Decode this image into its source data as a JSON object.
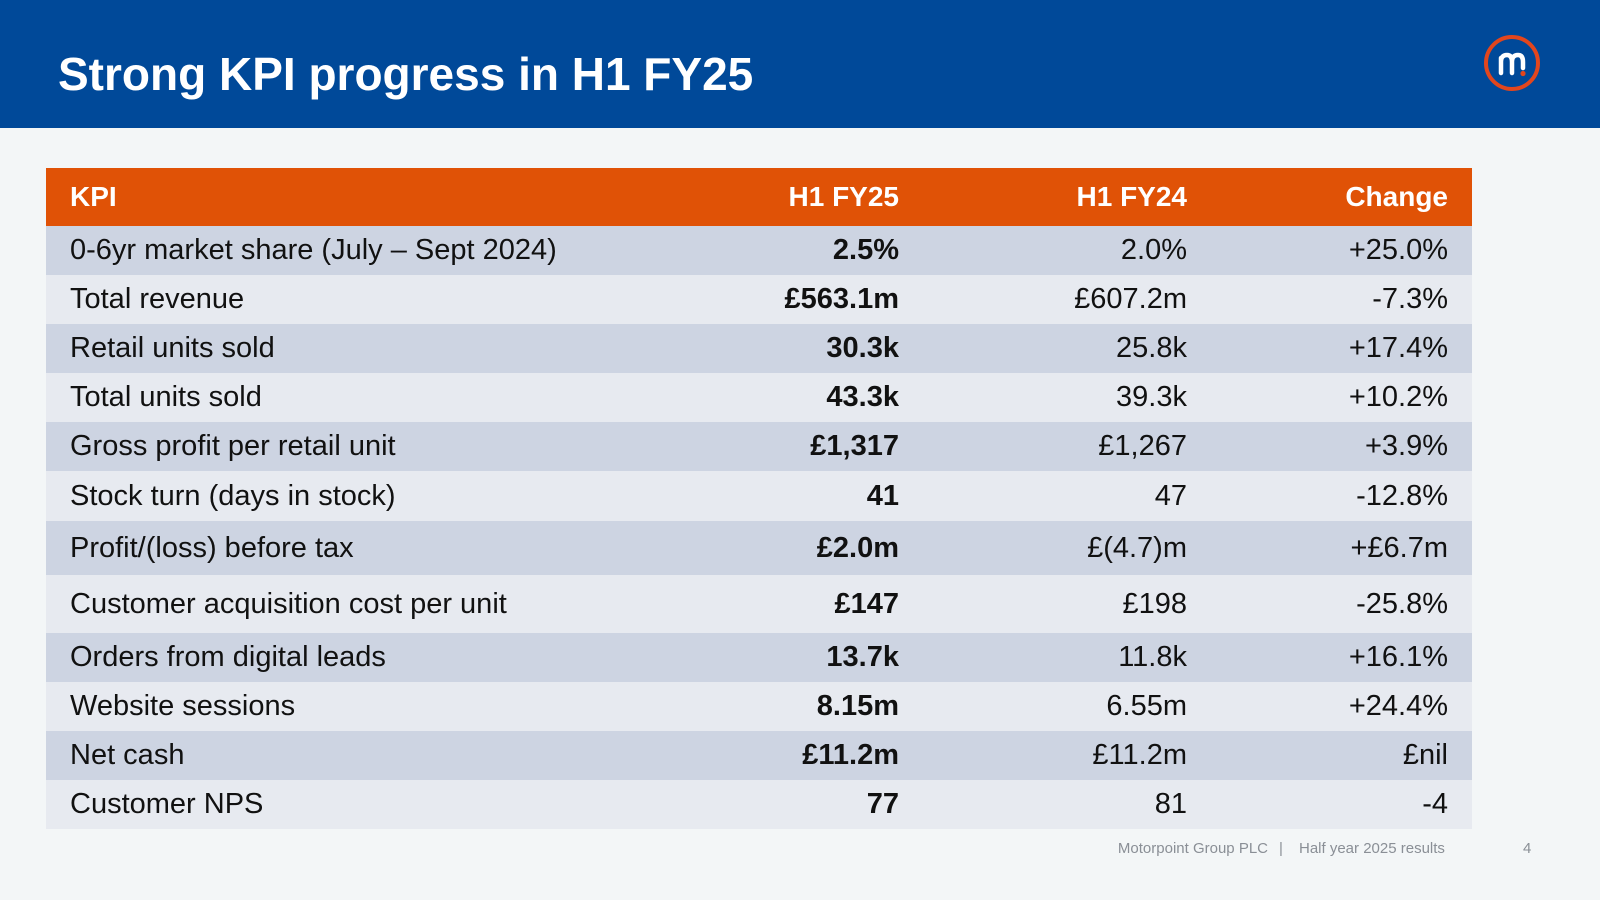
{
  "slide": {
    "title": "Strong KPI progress in H1 FY25",
    "logo": {
      "icon": "motorpoint-m-logo-icon",
      "accent_color": "#e2461d"
    }
  },
  "colors": {
    "header_bg": "#004999",
    "table_header_bg": "#e05206",
    "row_dark": "#cdd4e2",
    "row_light": "#e7eaf0"
  },
  "table": {
    "headers": [
      "KPI",
      "H1 FY25",
      "H1 FY24",
      "Change"
    ],
    "rows": [
      {
        "kpi": "0-6yr market share (July – Sept 2024)",
        "h1fy25": "2.5%",
        "h1fy24": "2.0%",
        "change": "+25.0%"
      },
      {
        "kpi": "Total revenue",
        "h1fy25": "£563.1m",
        "h1fy24": "£607.2m",
        "change": "-7.3%"
      },
      {
        "kpi": "Retail units sold",
        "h1fy25": "30.3k",
        "h1fy24": "25.8k",
        "change": "+17.4%"
      },
      {
        "kpi": "Total units sold",
        "h1fy25": "43.3k",
        "h1fy24": "39.3k",
        "change": "+10.2%"
      },
      {
        "kpi": "Gross profit per retail unit",
        "h1fy25": "£1,317",
        "h1fy24": "£1,267",
        "change": "+3.9%"
      },
      {
        "kpi": "Stock turn (days in stock)",
        "h1fy25": "41",
        "h1fy24": "47",
        "change": "-12.8%"
      },
      {
        "kpi": "Profit/(loss) before tax",
        "h1fy25": "£2.0m",
        "h1fy24": "£(4.7)m",
        "change": "+£6.7m"
      },
      {
        "kpi": "Customer acquisition cost per unit",
        "h1fy25": "£147",
        "h1fy24": "£198",
        "change": "-25.8%"
      },
      {
        "kpi": "Orders from digital leads",
        "h1fy25": "13.7k",
        "h1fy24": "11.8k",
        "change": "+16.1%"
      },
      {
        "kpi": "Website sessions",
        "h1fy25": "8.15m",
        "h1fy24": "6.55m",
        "change": "+24.4%"
      },
      {
        "kpi": "Net cash",
        "h1fy25": "£11.2m",
        "h1fy24": "£11.2m",
        "change": "£nil"
      },
      {
        "kpi": "Customer NPS",
        "h1fy25": "77",
        "h1fy24": "81",
        "change": "-4"
      }
    ]
  },
  "footer": {
    "company": "Motorpoint Group PLC",
    "separator": "|",
    "report": "Half year 2025 results",
    "page": "4"
  }
}
